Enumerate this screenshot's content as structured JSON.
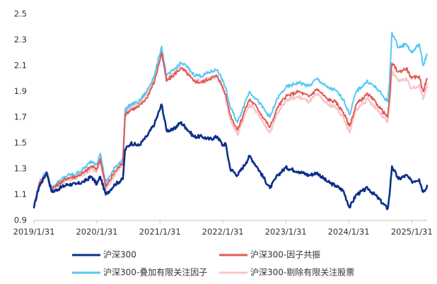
{
  "chart_data": {
    "type": "line",
    "title": "",
    "xlabel": "",
    "ylabel": "",
    "ylim": [
      0.9,
      2.5
    ],
    "y_ticks": [
      "2.5",
      "2.3",
      "2.1",
      "1.9",
      "1.7",
      "1.5",
      "1.3",
      "1.1",
      "0.9"
    ],
    "x_ticks": [
      "2019/1/31",
      "2020/1/31",
      "2021/1/31",
      "2022/1/31",
      "2023/1/31",
      "2024/1/31",
      "2025/1/31"
    ],
    "grid": false,
    "legend_position": "bottom",
    "x_start": "2019-01-31",
    "x_end": "2025-04-30",
    "series": [
      {
        "name": "沪深300",
        "color": "#0d2f8c",
        "points": [
          [
            "2019-01-31",
            1.0
          ],
          [
            "2019-03-01",
            1.16
          ],
          [
            "2019-04-15",
            1.27
          ],
          [
            "2019-05-15",
            1.12
          ],
          [
            "2019-06-30",
            1.15
          ],
          [
            "2019-08-15",
            1.18
          ],
          [
            "2019-10-01",
            1.18
          ],
          [
            "2019-11-15",
            1.2
          ],
          [
            "2019-12-31",
            1.24
          ],
          [
            "2020-01-31",
            1.18
          ],
          [
            "2020-02-20",
            1.24
          ],
          [
            "2020-03-23",
            1.1
          ],
          [
            "2020-05-15",
            1.18
          ],
          [
            "2020-06-30",
            1.22
          ],
          [
            "2020-07-13",
            1.45
          ],
          [
            "2020-08-15",
            1.5
          ],
          [
            "2020-09-30",
            1.48
          ],
          [
            "2020-11-15",
            1.55
          ],
          [
            "2020-12-31",
            1.65
          ],
          [
            "2021-02-10",
            1.8
          ],
          [
            "2021-03-10",
            1.6
          ],
          [
            "2021-04-15",
            1.6
          ],
          [
            "2021-05-31",
            1.66
          ],
          [
            "2021-07-01",
            1.62
          ],
          [
            "2021-08-15",
            1.55
          ],
          [
            "2021-09-30",
            1.55
          ],
          [
            "2021-11-15",
            1.53
          ],
          [
            "2021-12-31",
            1.55
          ],
          [
            "2022-01-31",
            1.48
          ],
          [
            "2022-02-15",
            1.5
          ],
          [
            "2022-03-15",
            1.3
          ],
          [
            "2022-04-26",
            1.25
          ],
          [
            "2022-06-15",
            1.35
          ],
          [
            "2022-07-05",
            1.4
          ],
          [
            "2022-08-15",
            1.32
          ],
          [
            "2022-10-31",
            1.15
          ],
          [
            "2022-12-15",
            1.25
          ],
          [
            "2023-01-31",
            1.31
          ],
          [
            "2023-04-15",
            1.28
          ],
          [
            "2023-06-15",
            1.25
          ],
          [
            "2023-07-31",
            1.27
          ],
          [
            "2023-09-30",
            1.2
          ],
          [
            "2023-11-15",
            1.17
          ],
          [
            "2023-12-31",
            1.13
          ],
          [
            "2024-02-05",
            1.0
          ],
          [
            "2024-03-15",
            1.1
          ],
          [
            "2024-05-20",
            1.15
          ],
          [
            "2024-07-15",
            1.08
          ],
          [
            "2024-09-13",
            0.99
          ],
          [
            "2024-09-24",
            1.1
          ],
          [
            "2024-10-08",
            1.32
          ],
          [
            "2024-11-15",
            1.22
          ],
          [
            "2024-12-31",
            1.25
          ],
          [
            "2025-01-31",
            1.2
          ],
          [
            "2025-03-15",
            1.22
          ],
          [
            "2025-04-07",
            1.12
          ],
          [
            "2025-04-30",
            1.17
          ]
        ]
      },
      {
        "name": "沪深300-因子共振",
        "color": "#e05a55",
        "points": [
          [
            "2019-01-31",
            1.0
          ],
          [
            "2019-03-01",
            1.18
          ],
          [
            "2019-04-15",
            1.27
          ],
          [
            "2019-05-15",
            1.14
          ],
          [
            "2019-06-30",
            1.19
          ],
          [
            "2019-08-15",
            1.23
          ],
          [
            "2019-10-01",
            1.24
          ],
          [
            "2019-11-15",
            1.27
          ],
          [
            "2019-12-31",
            1.32
          ],
          [
            "2020-01-31",
            1.3
          ],
          [
            "2020-02-20",
            1.38
          ],
          [
            "2020-03-23",
            1.16
          ],
          [
            "2020-05-15",
            1.28
          ],
          [
            "2020-06-30",
            1.35
          ],
          [
            "2020-07-13",
            1.72
          ],
          [
            "2020-08-15",
            1.76
          ],
          [
            "2020-09-30",
            1.78
          ],
          [
            "2020-11-15",
            1.85
          ],
          [
            "2020-12-31",
            1.98
          ],
          [
            "2021-02-10",
            2.2
          ],
          [
            "2021-03-10",
            1.98
          ],
          [
            "2021-04-15",
            2.02
          ],
          [
            "2021-05-31",
            2.08
          ],
          [
            "2021-07-01",
            2.05
          ],
          [
            "2021-08-15",
            1.98
          ],
          [
            "2021-09-30",
            1.97
          ],
          [
            "2021-11-15",
            2.0
          ],
          [
            "2021-12-31",
            2.02
          ],
          [
            "2022-01-31",
            1.93
          ],
          [
            "2022-02-15",
            1.88
          ],
          [
            "2022-03-15",
            1.72
          ],
          [
            "2022-04-26",
            1.6
          ],
          [
            "2022-06-15",
            1.78
          ],
          [
            "2022-07-05",
            1.84
          ],
          [
            "2022-08-15",
            1.78
          ],
          [
            "2022-10-31",
            1.62
          ],
          [
            "2022-12-15",
            1.78
          ],
          [
            "2023-01-31",
            1.86
          ],
          [
            "2023-04-15",
            1.9
          ],
          [
            "2023-06-15",
            1.86
          ],
          [
            "2023-07-31",
            1.92
          ],
          [
            "2023-09-30",
            1.84
          ],
          [
            "2023-11-15",
            1.82
          ],
          [
            "2023-12-31",
            1.74
          ],
          [
            "2024-02-05",
            1.63
          ],
          [
            "2024-03-15",
            1.8
          ],
          [
            "2024-05-20",
            1.88
          ],
          [
            "2024-07-15",
            1.8
          ],
          [
            "2024-09-13",
            1.7
          ],
          [
            "2024-09-24",
            1.85
          ],
          [
            "2024-10-08",
            2.12
          ],
          [
            "2024-11-15",
            2.05
          ],
          [
            "2024-12-31",
            2.08
          ],
          [
            "2025-01-31",
            2.0
          ],
          [
            "2025-03-15",
            2.02
          ],
          [
            "2025-04-07",
            1.9
          ],
          [
            "2025-04-30",
            2.0
          ]
        ]
      },
      {
        "name": "沪深300-叠加有限关注因子",
        "color": "#56c8f2",
        "points": [
          [
            "2019-01-31",
            1.0
          ],
          [
            "2019-03-01",
            1.19
          ],
          [
            "2019-04-15",
            1.28
          ],
          [
            "2019-05-15",
            1.15
          ],
          [
            "2019-06-30",
            1.21
          ],
          [
            "2019-08-15",
            1.25
          ],
          [
            "2019-10-01",
            1.26
          ],
          [
            "2019-11-15",
            1.3
          ],
          [
            "2019-12-31",
            1.36
          ],
          [
            "2020-01-31",
            1.34
          ],
          [
            "2020-02-20",
            1.42
          ],
          [
            "2020-03-23",
            1.19
          ],
          [
            "2020-05-15",
            1.31
          ],
          [
            "2020-06-30",
            1.38
          ],
          [
            "2020-07-13",
            1.76
          ],
          [
            "2020-08-15",
            1.8
          ],
          [
            "2020-09-30",
            1.82
          ],
          [
            "2020-11-15",
            1.9
          ],
          [
            "2020-12-31",
            2.03
          ],
          [
            "2021-02-10",
            2.25
          ],
          [
            "2021-03-10",
            2.02
          ],
          [
            "2021-04-15",
            2.06
          ],
          [
            "2021-05-31",
            2.12
          ],
          [
            "2021-07-01",
            2.1
          ],
          [
            "2021-08-15",
            2.03
          ],
          [
            "2021-09-30",
            2.02
          ],
          [
            "2021-11-15",
            2.05
          ],
          [
            "2021-12-31",
            2.07
          ],
          [
            "2022-01-31",
            1.98
          ],
          [
            "2022-02-15",
            1.93
          ],
          [
            "2022-03-15",
            1.78
          ],
          [
            "2022-04-26",
            1.66
          ],
          [
            "2022-06-15",
            1.84
          ],
          [
            "2022-07-05",
            1.9
          ],
          [
            "2022-08-15",
            1.84
          ],
          [
            "2022-10-31",
            1.7
          ],
          [
            "2022-12-15",
            1.85
          ],
          [
            "2023-01-31",
            1.93
          ],
          [
            "2023-04-15",
            1.97
          ],
          [
            "2023-06-15",
            1.94
          ],
          [
            "2023-07-31",
            2.0
          ],
          [
            "2023-09-30",
            1.93
          ],
          [
            "2023-11-15",
            1.91
          ],
          [
            "2023-12-31",
            1.84
          ],
          [
            "2024-02-05",
            1.72
          ],
          [
            "2024-03-15",
            1.9
          ],
          [
            "2024-05-20",
            1.98
          ],
          [
            "2024-07-15",
            1.92
          ],
          [
            "2024-09-13",
            1.82
          ],
          [
            "2024-09-24",
            1.98
          ],
          [
            "2024-10-08",
            2.36
          ],
          [
            "2024-11-15",
            2.24
          ],
          [
            "2024-12-31",
            2.27
          ],
          [
            "2025-01-31",
            2.2
          ],
          [
            "2025-03-15",
            2.27
          ],
          [
            "2025-04-07",
            2.1
          ],
          [
            "2025-04-30",
            2.19
          ]
        ]
      },
      {
        "name": "沪深300-剔除有限关注股票",
        "color": "#f6c6cb",
        "points": [
          [
            "2019-01-31",
            1.0
          ],
          [
            "2019-03-01",
            1.17
          ],
          [
            "2019-04-15",
            1.27
          ],
          [
            "2019-05-15",
            1.13
          ],
          [
            "2019-06-30",
            1.18
          ],
          [
            "2019-08-15",
            1.22
          ],
          [
            "2019-10-01",
            1.23
          ],
          [
            "2019-11-15",
            1.26
          ],
          [
            "2019-12-31",
            1.3
          ],
          [
            "2020-01-31",
            1.28
          ],
          [
            "2020-02-20",
            1.36
          ],
          [
            "2020-03-23",
            1.14
          ],
          [
            "2020-05-15",
            1.26
          ],
          [
            "2020-06-30",
            1.33
          ],
          [
            "2020-07-13",
            1.74
          ],
          [
            "2020-08-15",
            1.78
          ],
          [
            "2020-09-30",
            1.8
          ],
          [
            "2020-11-15",
            1.88
          ],
          [
            "2020-12-31",
            2.0
          ],
          [
            "2021-02-10",
            2.22
          ],
          [
            "2021-03-10",
            2.0
          ],
          [
            "2021-04-15",
            2.04
          ],
          [
            "2021-05-31",
            2.09
          ],
          [
            "2021-07-01",
            2.06
          ],
          [
            "2021-08-15",
            1.99
          ],
          [
            "2021-09-30",
            1.98
          ],
          [
            "2021-11-15",
            2.01
          ],
          [
            "2021-12-31",
            2.02
          ],
          [
            "2022-01-31",
            1.92
          ],
          [
            "2022-02-15",
            1.86
          ],
          [
            "2022-03-15",
            1.68
          ],
          [
            "2022-04-26",
            1.56
          ],
          [
            "2022-06-15",
            1.74
          ],
          [
            "2022-07-05",
            1.8
          ],
          [
            "2022-08-15",
            1.74
          ],
          [
            "2022-10-31",
            1.58
          ],
          [
            "2022-12-15",
            1.74
          ],
          [
            "2023-01-31",
            1.83
          ],
          [
            "2023-04-15",
            1.86
          ],
          [
            "2023-06-15",
            1.82
          ],
          [
            "2023-07-31",
            1.88
          ],
          [
            "2023-09-30",
            1.8
          ],
          [
            "2023-11-15",
            1.78
          ],
          [
            "2023-12-31",
            1.7
          ],
          [
            "2024-02-05",
            1.58
          ],
          [
            "2024-03-15",
            1.76
          ],
          [
            "2024-05-20",
            1.84
          ],
          [
            "2024-07-15",
            1.76
          ],
          [
            "2024-09-13",
            1.66
          ],
          [
            "2024-09-24",
            1.8
          ],
          [
            "2024-10-08",
            2.05
          ],
          [
            "2024-11-15",
            1.98
          ],
          [
            "2024-12-31",
            2.0
          ],
          [
            "2025-01-31",
            1.92
          ],
          [
            "2025-03-15",
            1.95
          ],
          [
            "2025-04-07",
            1.84
          ],
          [
            "2025-04-30",
            1.95
          ]
        ]
      }
    ]
  }
}
